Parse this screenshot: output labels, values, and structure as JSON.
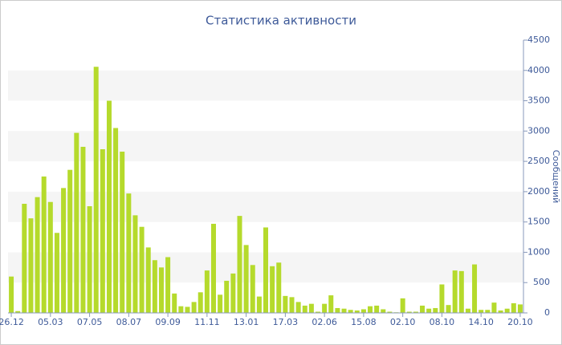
{
  "chart_data": {
    "type": "bar",
    "title": "Статистика активности",
    "y_label": "Сообщений",
    "categories": [
      "26.12",
      null,
      null,
      null,
      null,
      null,
      "05.03",
      null,
      null,
      null,
      null,
      null,
      "07.05",
      null,
      null,
      null,
      null,
      null,
      "08.07",
      null,
      null,
      null,
      null,
      null,
      "09.09",
      null,
      null,
      null,
      null,
      null,
      "11.11",
      null,
      null,
      null,
      null,
      null,
      "13.01",
      null,
      null,
      null,
      null,
      null,
      "17.03",
      null,
      null,
      null,
      null,
      null,
      "02.06",
      null,
      null,
      null,
      null,
      null,
      "15.08",
      null,
      null,
      null,
      null,
      null,
      "02.10",
      null,
      null,
      null,
      null,
      null,
      "08.10",
      null,
      null,
      null,
      null,
      null,
      "14.10",
      null,
      null,
      null,
      null,
      null,
      "20.10"
    ],
    "values": [
      600,
      30,
      1800,
      1560,
      1910,
      2250,
      1830,
      1320,
      2060,
      2360,
      2970,
      2740,
      1760,
      4060,
      2700,
      3500,
      3050,
      2660,
      1970,
      1610,
      1420,
      1080,
      870,
      750,
      920,
      320,
      110,
      100,
      180,
      340,
      700,
      1470,
      300,
      530,
      650,
      1600,
      1120,
      790,
      270,
      1410,
      770,
      830,
      280,
      260,
      180,
      120,
      150,
      20,
      150,
      290,
      80,
      70,
      50,
      40,
      60,
      110,
      120,
      60,
      20,
      10,
      240,
      20,
      20,
      120,
      70,
      80,
      470,
      130,
      700,
      690,
      70,
      800,
      50,
      50,
      170,
      40,
      70,
      160,
      140
    ],
    "color": "#b5da2c",
    "ylim": [
      0,
      4500
    ],
    "yticks": [
      0,
      500,
      1000,
      1500,
      2000,
      2500,
      3000,
      3500,
      4000,
      4500
    ],
    "grid": true
  }
}
